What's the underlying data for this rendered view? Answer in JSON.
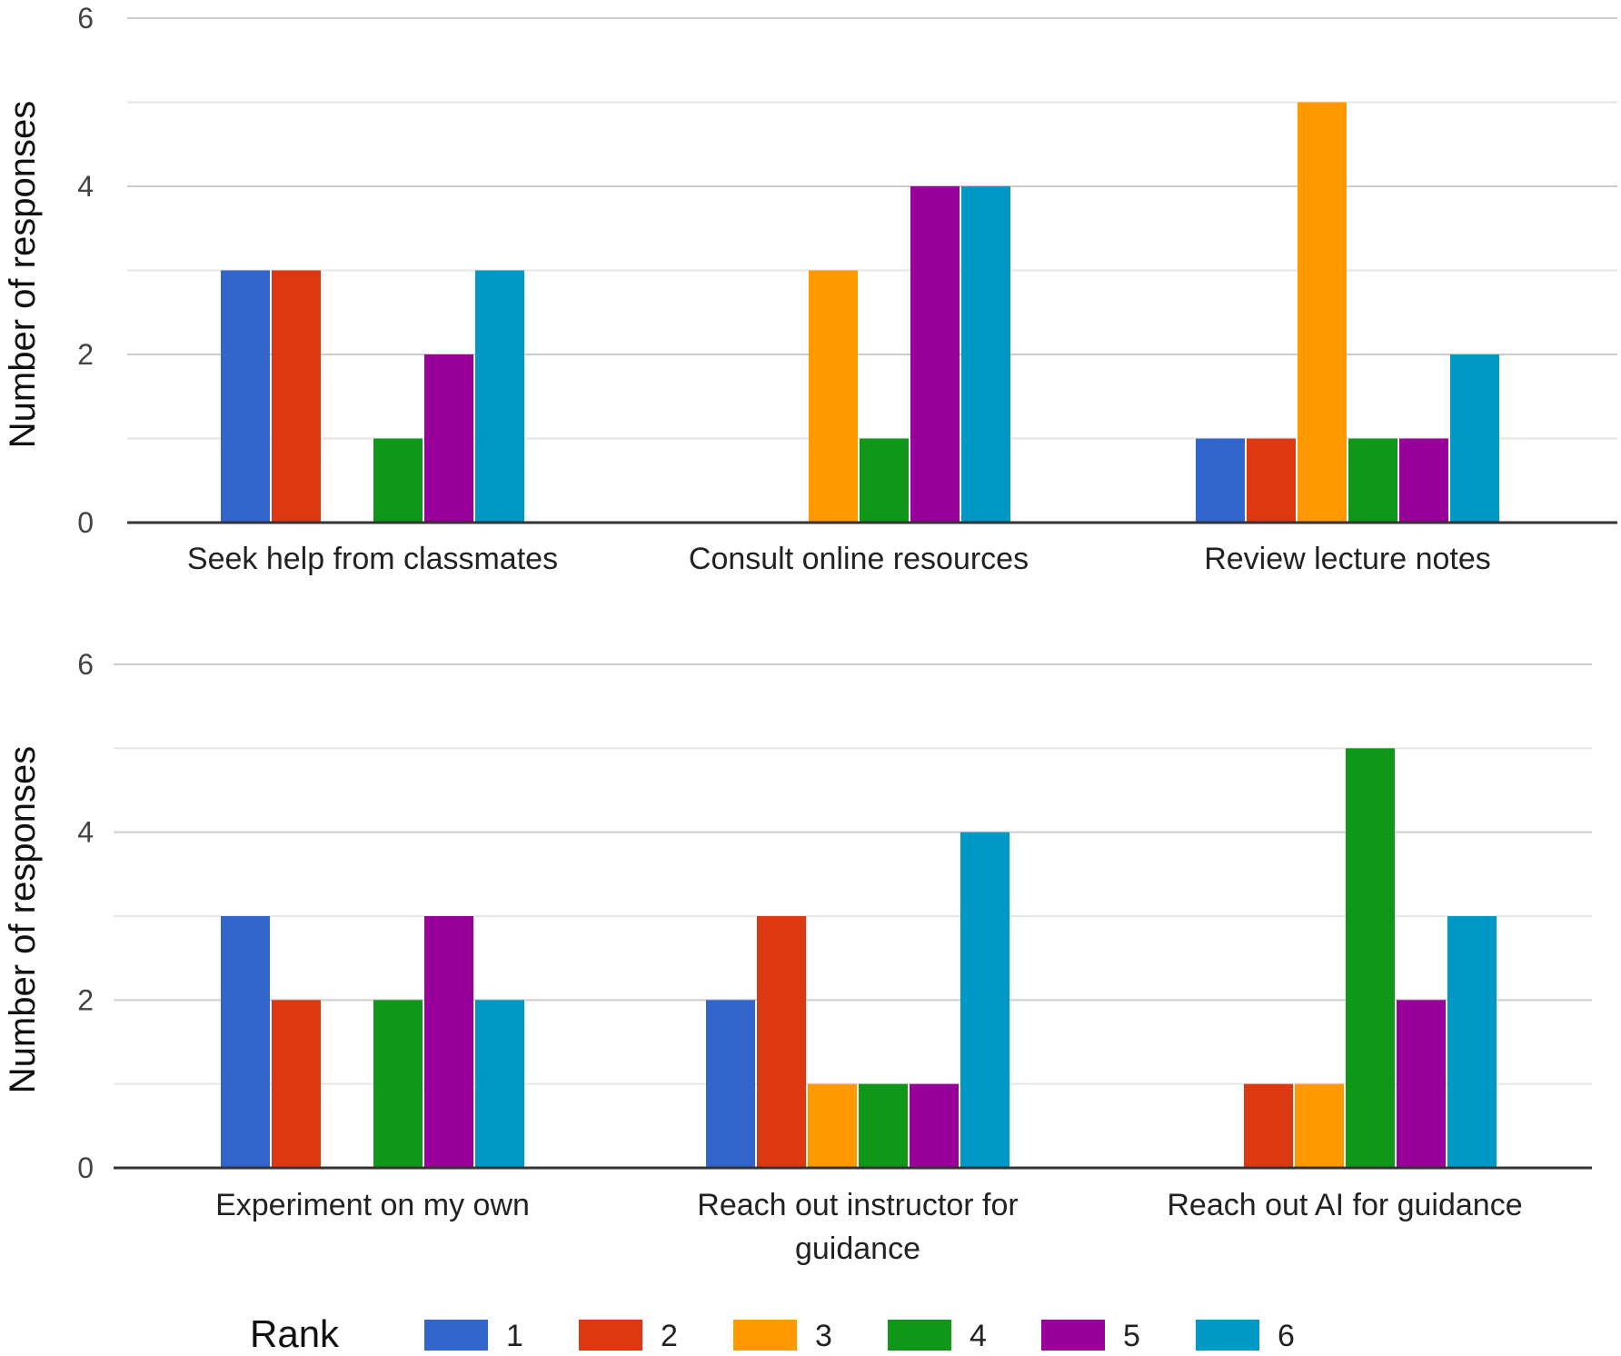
{
  "chart_data": [
    {
      "type": "bar",
      "ylabel": "Number of responses",
      "ylim": [
        0,
        6
      ],
      "yticks": [
        0,
        2,
        4,
        6
      ],
      "categories": [
        [
          "Seek help from classmates"
        ],
        [
          "Consult online resources"
        ],
        [
          "Review lecture notes"
        ]
      ],
      "series": [
        {
          "name": "1",
          "values": [
            3,
            0,
            1
          ]
        },
        {
          "name": "2",
          "values": [
            3,
            0,
            1
          ]
        },
        {
          "name": "3",
          "values": [
            0,
            3,
            5
          ]
        },
        {
          "name": "4",
          "values": [
            1,
            1,
            1
          ]
        },
        {
          "name": "5",
          "values": [
            2,
            4,
            1
          ]
        },
        {
          "name": "6",
          "values": [
            3,
            4,
            2
          ]
        }
      ]
    },
    {
      "type": "bar",
      "ylabel": "Number of responses",
      "ylim": [
        0,
        6
      ],
      "yticks": [
        0,
        2,
        4,
        6
      ],
      "categories": [
        [
          "Experiment on my own"
        ],
        [
          "Reach out instructor for",
          "guidance"
        ],
        [
          "Reach out AI for guidance"
        ]
      ],
      "series": [
        {
          "name": "1",
          "values": [
            3,
            2,
            0
          ]
        },
        {
          "name": "2",
          "values": [
            2,
            3,
            1
          ]
        },
        {
          "name": "3",
          "values": [
            0,
            1,
            1
          ]
        },
        {
          "name": "4",
          "values": [
            2,
            1,
            5
          ]
        },
        {
          "name": "5",
          "values": [
            3,
            1,
            2
          ]
        },
        {
          "name": "6",
          "values": [
            2,
            4,
            3
          ]
        }
      ]
    }
  ],
  "legend": {
    "title": "Rank",
    "items": [
      "1",
      "2",
      "3",
      "4",
      "5",
      "6"
    ]
  },
  "colors": {
    "series": [
      "#3366cc",
      "#dc3912",
      "#ff9900",
      "#109618",
      "#990099",
      "#0099c6"
    ],
    "gridline": "#cccccc",
    "minor_gridline": "#e6e6e6",
    "baseline": "#333333"
  }
}
